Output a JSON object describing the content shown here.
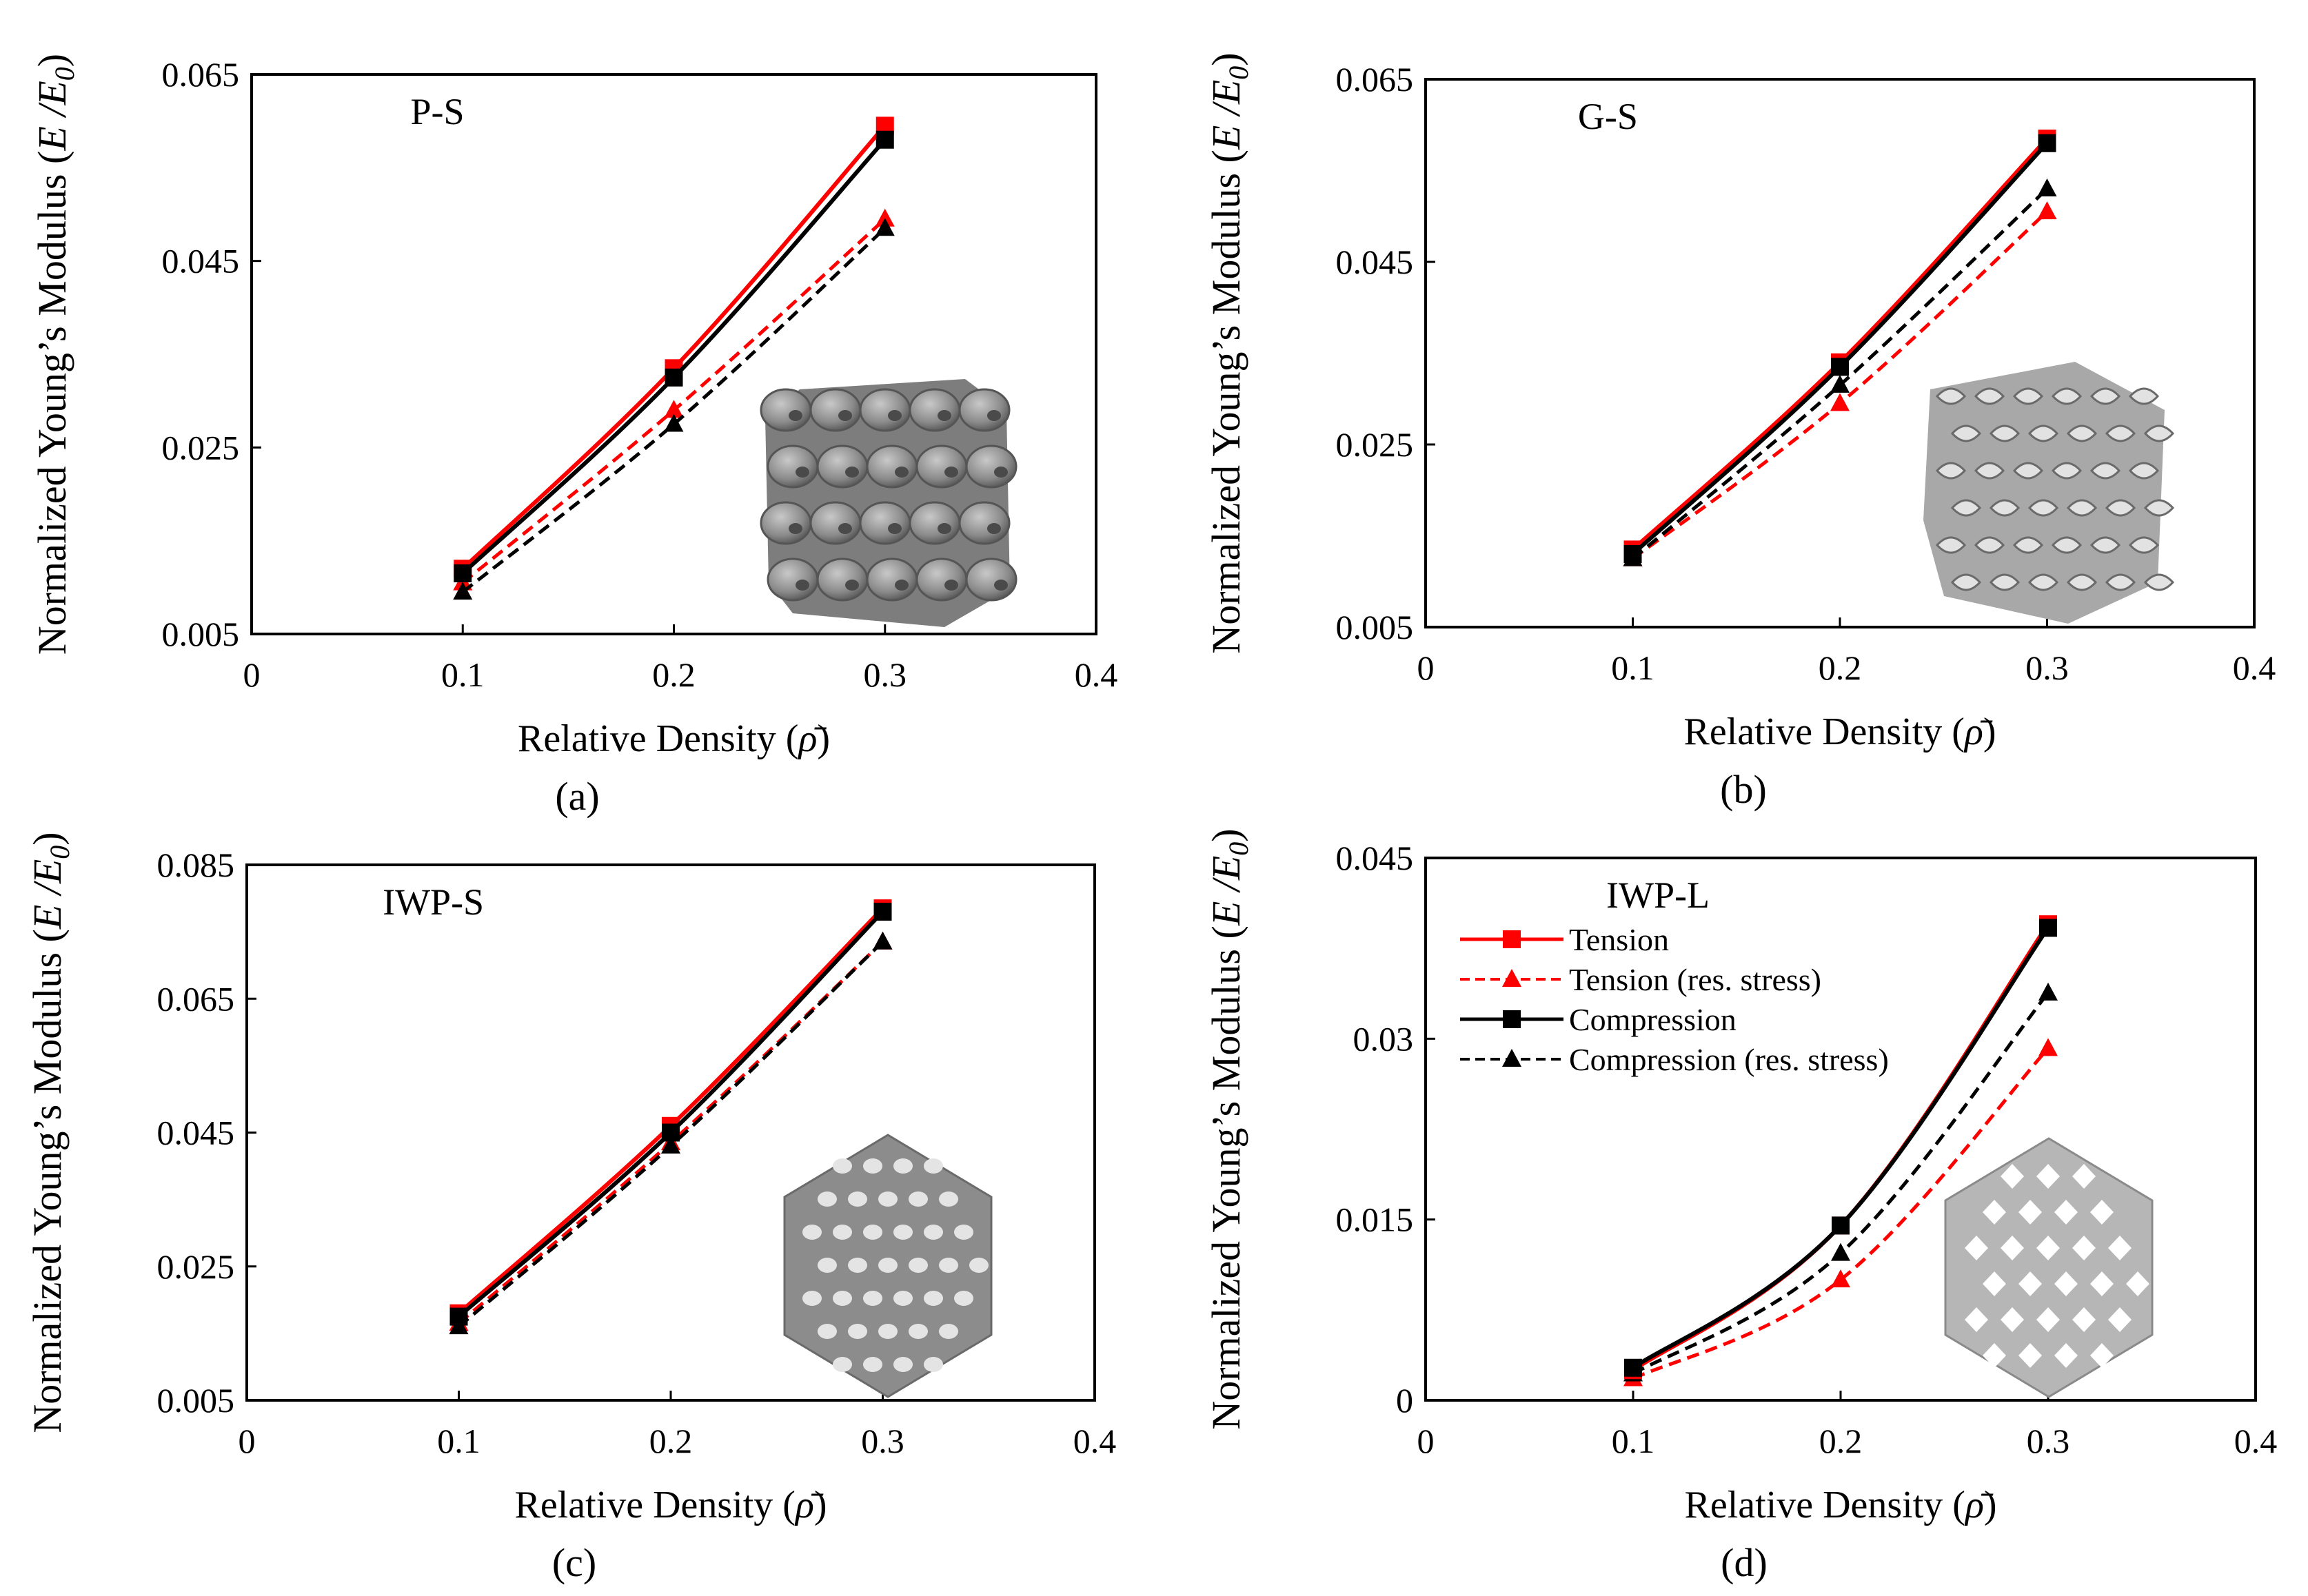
{
  "figure": {
    "legend": {
      "tension": "Tension",
      "tension_res": "Tension (res. stress)",
      "compression": "Compression",
      "compression_res": "Compression (res. stress)"
    }
  },
  "chart_data": [
    {
      "type": "line",
      "panel_label": "(a)",
      "title": "P-S",
      "xlabel": "Relative Density (ρ̄)",
      "ylabel": "Normalized Young’s Modulus (E /E0)",
      "xlim": [
        0,
        0.4
      ],
      "ylim": [
        0.005,
        0.065
      ],
      "xticks": [
        "0",
        "0.1",
        "0.2",
        "0.3",
        "0.4"
      ],
      "yticks": [
        "0.005",
        "0.025",
        "0.045",
        "0.065"
      ],
      "x": [
        0.1,
        0.2,
        0.3
      ],
      "series": [
        {
          "name": "Tension",
          "values": [
            0.012,
            0.0335,
            0.0595
          ],
          "color": "#ff0000",
          "dash": false,
          "marker": "square"
        },
        {
          "name": "Tension (res. stress)",
          "values": [
            0.0105,
            0.029,
            0.0495
          ],
          "color": "#ff0000",
          "dash": true,
          "marker": "triangle"
        },
        {
          "name": "Compression",
          "values": [
            0.0115,
            0.0325,
            0.058
          ],
          "color": "#000000",
          "dash": false,
          "marker": "square"
        },
        {
          "name": "Compression (res. stress)",
          "values": [
            0.0095,
            0.0275,
            0.0485
          ],
          "color": "#000000",
          "dash": true,
          "marker": "triangle"
        }
      ],
      "inset": "p-structure"
    },
    {
      "type": "line",
      "panel_label": "(b)",
      "title": "G-S",
      "xlabel": "Relative Density (ρ̄)",
      "ylabel": "Normalized Young’s Modulus (E /E0)",
      "xlim": [
        0,
        0.4
      ],
      "ylim": [
        0.005,
        0.065
      ],
      "xticks": [
        "0",
        "0.1",
        "0.2",
        "0.3",
        "0.4"
      ],
      "yticks": [
        "0.005",
        "0.025",
        "0.045",
        "0.065"
      ],
      "x": [
        0.1,
        0.2,
        0.3
      ],
      "series": [
        {
          "name": "Tension",
          "values": [
            0.0135,
            0.034,
            0.0585
          ],
          "color": "#ff0000",
          "dash": false,
          "marker": "square"
        },
        {
          "name": "Tension (res. stress)",
          "values": [
            0.0125,
            0.0295,
            0.0505
          ],
          "color": "#ff0000",
          "dash": true,
          "marker": "triangle"
        },
        {
          "name": "Compression",
          "values": [
            0.013,
            0.0335,
            0.058
          ],
          "color": "#000000",
          "dash": false,
          "marker": "square"
        },
        {
          "name": "Compression (res. stress)",
          "values": [
            0.0125,
            0.0315,
            0.053
          ],
          "color": "#000000",
          "dash": true,
          "marker": "triangle"
        }
      ],
      "inset": "g-structure"
    },
    {
      "type": "line",
      "panel_label": "(c)",
      "title": "IWP-S",
      "xlabel": "Relative Density (ρ̄)",
      "ylabel": "Normalized Young’s Modulus (E /E0)",
      "xlim": [
        0,
        0.4
      ],
      "ylim": [
        0.005,
        0.085
      ],
      "xticks": [
        "0",
        "0.1",
        "0.2",
        "0.3",
        "0.4"
      ],
      "yticks": [
        "0.005",
        "0.025",
        "0.045",
        "0.065",
        "0.085"
      ],
      "x": [
        0.1,
        0.2,
        0.3
      ],
      "series": [
        {
          "name": "Tension",
          "values": [
            0.018,
            0.046,
            0.0785
          ],
          "color": "#ff0000",
          "dash": false,
          "marker": "square"
        },
        {
          "name": "Tension (res. stress)",
          "values": [
            0.0165,
            0.0435,
            0.0735
          ],
          "color": "#ff0000",
          "dash": true,
          "marker": "triangle"
        },
        {
          "name": "Compression",
          "values": [
            0.0175,
            0.045,
            0.078
          ],
          "color": "#000000",
          "dash": false,
          "marker": "square"
        },
        {
          "name": "Compression (res. stress)",
          "values": [
            0.016,
            0.043,
            0.0735
          ],
          "color": "#000000",
          "dash": true,
          "marker": "triangle"
        }
      ],
      "inset": "iwp-structure"
    },
    {
      "type": "line",
      "panel_label": "(d)",
      "title": "IWP-L",
      "xlabel": "Relative Density (ρ̄)",
      "ylabel": "Normalized Young’s Modulus (E /E0)",
      "xlim": [
        0,
        0.4
      ],
      "ylim": [
        0,
        0.045
      ],
      "xticks": [
        "0",
        "0.1",
        "0.2",
        "0.3",
        "0.4"
      ],
      "yticks": [
        "0",
        "0.015",
        "0.03",
        "0.045"
      ],
      "x": [
        0.1,
        0.2,
        0.3
      ],
      "series": [
        {
          "name": "Tension",
          "values": [
            0.0025,
            0.0145,
            0.0395
          ],
          "color": "#ff0000",
          "dash": false,
          "marker": "square"
        },
        {
          "name": "Tension (res. stress)",
          "values": [
            0.0018,
            0.01,
            0.0292
          ],
          "color": "#ff0000",
          "dash": true,
          "marker": "triangle"
        },
        {
          "name": "Compression",
          "values": [
            0.0027,
            0.0145,
            0.0392
          ],
          "color": "#000000",
          "dash": false,
          "marker": "square"
        },
        {
          "name": "Compression (res. stress)",
          "values": [
            0.0022,
            0.0122,
            0.0338
          ],
          "color": "#000000",
          "dash": true,
          "marker": "triangle"
        }
      ],
      "legend": "top-left",
      "inset": "lattice-structure"
    }
  ]
}
